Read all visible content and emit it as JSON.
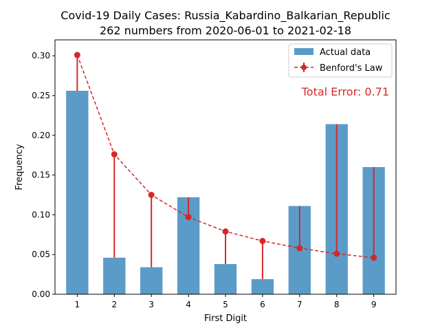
{
  "chart_data": {
    "type": "bar",
    "title": "Covid-19 Daily Cases: Russia_Kabardino_Balkarian_Republic",
    "subtitle": "262 numbers from 2020-06-01 to 2021-02-18",
    "xlabel": "First Digit",
    "ylabel": "Frequency",
    "categories": [
      "1",
      "2",
      "3",
      "4",
      "5",
      "6",
      "7",
      "8",
      "9"
    ],
    "ylim": [
      0,
      0.32
    ],
    "yticks": [
      "0.00",
      "0.05",
      "0.10",
      "0.15",
      "0.20",
      "0.25",
      "0.30"
    ],
    "series": [
      {
        "name": "Actual data",
        "kind": "bar",
        "color": "#5b9bc8",
        "values": [
          0.256,
          0.046,
          0.034,
          0.122,
          0.038,
          0.019,
          0.111,
          0.214,
          0.16
        ]
      },
      {
        "name": "Benford's Law",
        "kind": "line",
        "color": "#d62728",
        "values": [
          0.301,
          0.176,
          0.125,
          0.097,
          0.079,
          0.067,
          0.058,
          0.051,
          0.046
        ]
      }
    ],
    "annotation": "Total Error: 0.71",
    "legend_position": "top-right",
    "grid": false
  }
}
